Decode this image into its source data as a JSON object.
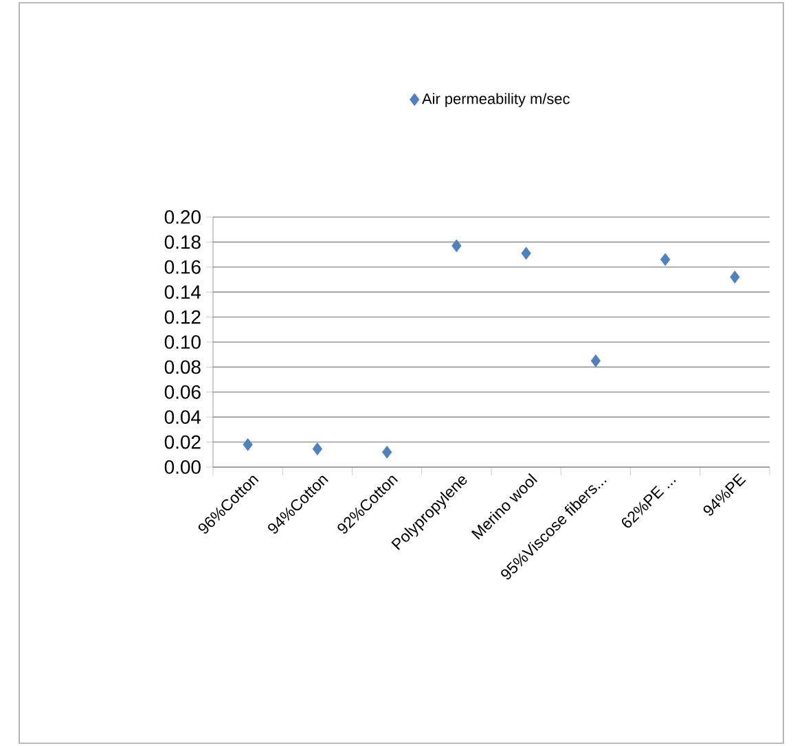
{
  "chart_data": {
    "type": "scatter",
    "categories": [
      "96%Cotton",
      "94%Cotton",
      "92%Cotton",
      "Polypropylene",
      "Merino wool",
      "95%Viscose fibers...",
      "62%PE ...",
      "94%PE"
    ],
    "series": [
      {
        "name": "Air permeability m/sec",
        "color": "#4f81bd",
        "values": [
          0.018,
          0.0145,
          0.012,
          0.177,
          0.171,
          0.085,
          0.166,
          0.152
        ]
      }
    ],
    "ylim": [
      0,
      0.2
    ],
    "yticks": [
      {
        "value": 0,
        "label": "0.00"
      },
      {
        "value": 0.02,
        "label": "0.02"
      },
      {
        "value": 0.04,
        "label": "0.04"
      },
      {
        "value": 0.06,
        "label": "0.06"
      },
      {
        "value": 0.08,
        "label": "0.08"
      },
      {
        "value": 0.1,
        "label": "0.10"
      },
      {
        "value": 0.12,
        "label": "0.12"
      },
      {
        "value": 0.14,
        "label": "0.14"
      },
      {
        "value": 0.16,
        "label": "0.16"
      },
      {
        "value": 0.18,
        "label": "0.18"
      },
      {
        "value": 0.2,
        "label": "0.20"
      }
    ],
    "grid": "y",
    "legend": "top",
    "marker": "diamond"
  }
}
